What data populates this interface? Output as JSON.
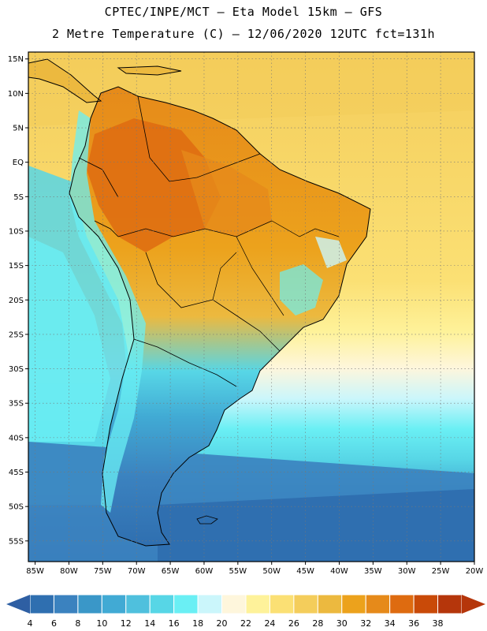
{
  "header": {
    "title_line1": "CPTEC/INPE/MCT –  Eta Model 15km – GFS",
    "title_line2": "2 Metre Temperature (C) – 12/06/2020 12UTC fct=131h"
  },
  "map": {
    "lat_labels": [
      "15N",
      "10N",
      "5N",
      "EQ",
      "5S",
      "10S",
      "15S",
      "20S",
      "25S",
      "30S",
      "35S",
      "40S",
      "45S",
      "50S",
      "55S"
    ],
    "lon_labels": [
      "85W",
      "80W",
      "75W",
      "70W",
      "65W",
      "60W",
      "55W",
      "50W",
      "45W",
      "40W",
      "35W",
      "30W",
      "25W",
      "20W"
    ],
    "lat_extent_deg": [
      -58,
      16
    ],
    "lon_extent_deg": [
      -86,
      -20
    ],
    "grid": "dotted"
  },
  "colorbar": {
    "labels": [
      "4",
      "6",
      "8",
      "10",
      "12",
      "14",
      "16",
      "18",
      "20",
      "22",
      "24",
      "26",
      "28",
      "30",
      "32",
      "34",
      "36",
      "38"
    ],
    "colors": [
      "#2f6fb0",
      "#3b82bf",
      "#3a97c8",
      "#41aad4",
      "#4fc0dd",
      "#57d6e6",
      "#6aeff4",
      "#cbf6fb",
      "#fef6dc",
      "#fef29a",
      "#fbe074",
      "#f4cd5b",
      "#ecb93f",
      "#eca21c",
      "#e68a1a",
      "#de6b10",
      "#c94a08",
      "#b5360b"
    ],
    "under_color": "#2e5fa3",
    "over_color": "#b5360b"
  }
}
